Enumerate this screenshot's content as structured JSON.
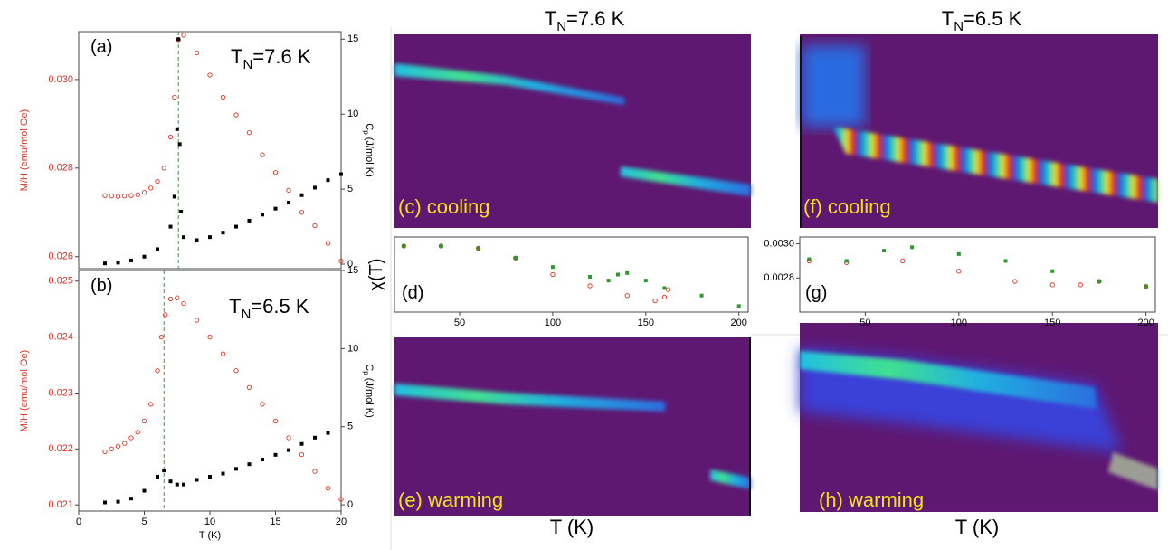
{
  "chart_data": [
    {
      "type": "scatter",
      "label": "(a)",
      "annotation": [
        "T",
        "N",
        "=7.6 K"
      ],
      "ylabel": "M/H (emu/mol Oe)",
      "ylabel_color": "#e03020",
      "y2label": [
        "C",
        "p",
        " (J/mol K)"
      ],
      "xlim": [
        0,
        20
      ],
      "ylim": [
        0.02573,
        0.03108
      ],
      "yticks": [
        0.026,
        0.028,
        {
          "value": 0.03,
          "label": "0.030"
        }
      ],
      "y2lim": [
        -0.3,
        15.5
      ],
      "y2ticks": [
        0,
        5,
        10,
        15
      ],
      "vline": 7.6,
      "vline_color": "#22aa22",
      "series": [
        {
          "color": "#e03020",
          "marker": "circle",
          "x": [
            2,
            2.5,
            3,
            3.5,
            4,
            4.5,
            5,
            5.5,
            6,
            6.5,
            7,
            7.3,
            7.6,
            8,
            9,
            10,
            11,
            12,
            13,
            14,
            15,
            16,
            17,
            18,
            19,
            20
          ],
          "values": [
            0.02738,
            0.02737,
            0.02736,
            0.02737,
            0.02738,
            0.0274,
            0.02745,
            0.02755,
            0.0277,
            0.028,
            0.0287,
            0.0296,
            0.0309,
            0.031,
            0.0306,
            0.0301,
            0.0296,
            0.0292,
            0.0288,
            0.0283,
            0.0279,
            0.0275,
            0.027,
            0.0267,
            0.0263,
            0.0259
          ]
        },
        {
          "color": "#000000",
          "marker": "square",
          "axis": "y2",
          "x": [
            2,
            3,
            4,
            5,
            6,
            7,
            7.3,
            7.5,
            7.6,
            7.7,
            7.8,
            8,
            9,
            10,
            11,
            12,
            13,
            14,
            15,
            16,
            17,
            18,
            19,
            20
          ],
          "values": [
            0.05,
            0.1,
            0.25,
            0.5,
            1.0,
            2.5,
            4.5,
            9,
            15,
            8,
            3.5,
            1.8,
            1.6,
            1.8,
            2.1,
            2.5,
            2.9,
            3.3,
            3.7,
            4.1,
            4.6,
            5.1,
            5.6,
            6.0
          ]
        }
      ]
    },
    {
      "type": "scatter",
      "label": "(b)",
      "annotation": [
        "T",
        "N",
        "=6.5 K"
      ],
      "ylabel": "M/H (emu/mol Oe)",
      "ylabel_color": "#e03020",
      "y2label": [
        "C",
        "p",
        " (J/mol K)"
      ],
      "xlabel": "T (K)",
      "xlim": [
        0,
        20
      ],
      "xticks": [
        0,
        5,
        10,
        15,
        20
      ],
      "ylim": [
        0.02089,
        0.02519
      ],
      "yticks": [
        0.021,
        0.022,
        0.023,
        0.024,
        0.025
      ],
      "y2lim": [
        -0.4,
        15.0
      ],
      "y2ticks": [
        0,
        5,
        10,
        15
      ],
      "vline": 6.5,
      "vline_color": "#22aa22",
      "series": [
        {
          "color": "#e03020",
          "marker": "circle",
          "x": [
            2,
            2.5,
            3,
            3.5,
            4,
            4.5,
            5,
            5.5,
            6,
            6.3,
            6.6,
            7,
            7.5,
            8,
            9,
            10,
            11,
            12,
            13,
            14,
            15,
            16,
            17,
            18,
            19,
            20
          ],
          "values": [
            0.02195,
            0.022,
            0.02205,
            0.0221,
            0.0222,
            0.0223,
            0.0225,
            0.0228,
            0.0234,
            0.024,
            0.0244,
            0.02468,
            0.0247,
            0.0246,
            0.0243,
            0.024,
            0.0237,
            0.0234,
            0.0231,
            0.0228,
            0.0225,
            0.0222,
            0.0219,
            0.0216,
            0.0213,
            0.0211
          ]
        },
        {
          "color": "#000000",
          "marker": "square",
          "axis": "y2",
          "x": [
            2,
            3,
            4,
            5,
            6,
            6.5,
            7,
            7.5,
            8,
            9,
            10,
            11,
            12,
            13,
            14,
            15,
            16,
            17,
            18,
            19
          ],
          "values": [
            0.15,
            0.2,
            0.4,
            0.9,
            1.8,
            2.2,
            1.5,
            1.3,
            1.3,
            1.6,
            1.8,
            2.0,
            2.3,
            2.6,
            2.9,
            3.2,
            3.5,
            3.9,
            4.3,
            4.6
          ]
        }
      ]
    },
    {
      "type": "scatter",
      "label": "(d)",
      "ylabel": "χ(T)",
      "xlim": [
        15,
        205
      ],
      "xticks": [
        50,
        100,
        150,
        200
      ],
      "ylim": [
        0,
        1
      ],
      "series": [
        {
          "color": "#e03020",
          "marker": "circle",
          "x": [
            20,
            40,
            60,
            80,
            100,
            120,
            140,
            155,
            160,
            162
          ],
          "values": [
            0.88,
            0.88,
            0.85,
            0.72,
            0.5,
            0.35,
            0.22,
            0.15,
            0.2,
            0.3
          ]
        },
        {
          "color": "#2a9a2a",
          "marker": "square",
          "x": [
            20,
            40,
            60,
            80,
            100,
            120,
            130,
            135,
            140,
            150,
            160,
            180,
            200
          ],
          "values": [
            0.88,
            0.88,
            0.85,
            0.72,
            0.6,
            0.47,
            0.42,
            0.5,
            0.52,
            0.42,
            0.32,
            0.22,
            0.08
          ]
        }
      ]
    },
    {
      "type": "scatter",
      "label": "(g)",
      "xlim": [
        15,
        205
      ],
      "xticks": [
        50,
        100,
        150,
        200
      ],
      "ylim": [
        0.0026,
        0.00304
      ],
      "yticks": [
        0.0028,
        {
          "value": 0.003,
          "label": "0.0030"
        }
      ],
      "series": [
        {
          "color": "#e03020",
          "marker": "circle",
          "x": [
            20,
            40,
            70,
            100,
            130,
            150,
            165,
            175,
            200
          ],
          "values": [
            0.0029,
            0.00289,
            0.0029,
            0.00284,
            0.00278,
            0.00276,
            0.00276,
            0.00278,
            0.00275
          ]
        },
        {
          "color": "#2a9a2a",
          "marker": "square",
          "x": [
            20,
            40,
            60,
            75,
            100,
            125,
            150,
            175,
            200
          ],
          "values": [
            0.00291,
            0.0029,
            0.00296,
            0.00298,
            0.00294,
            0.0029,
            0.00284,
            0.00278,
            0.00275
          ]
        }
      ]
    }
  ],
  "columns": [
    {
      "title": [
        "T",
        "N",
        "=7.6 K"
      ],
      "xlabel": "T (K)",
      "panels": [
        "(c) cooling",
        "(e) warming"
      ]
    },
    {
      "title": [
        "T",
        "N",
        "=6.5 K"
      ],
      "xlabel": "T (K)",
      "panels": [
        "(f) cooling",
        "(h) warming"
      ]
    }
  ]
}
